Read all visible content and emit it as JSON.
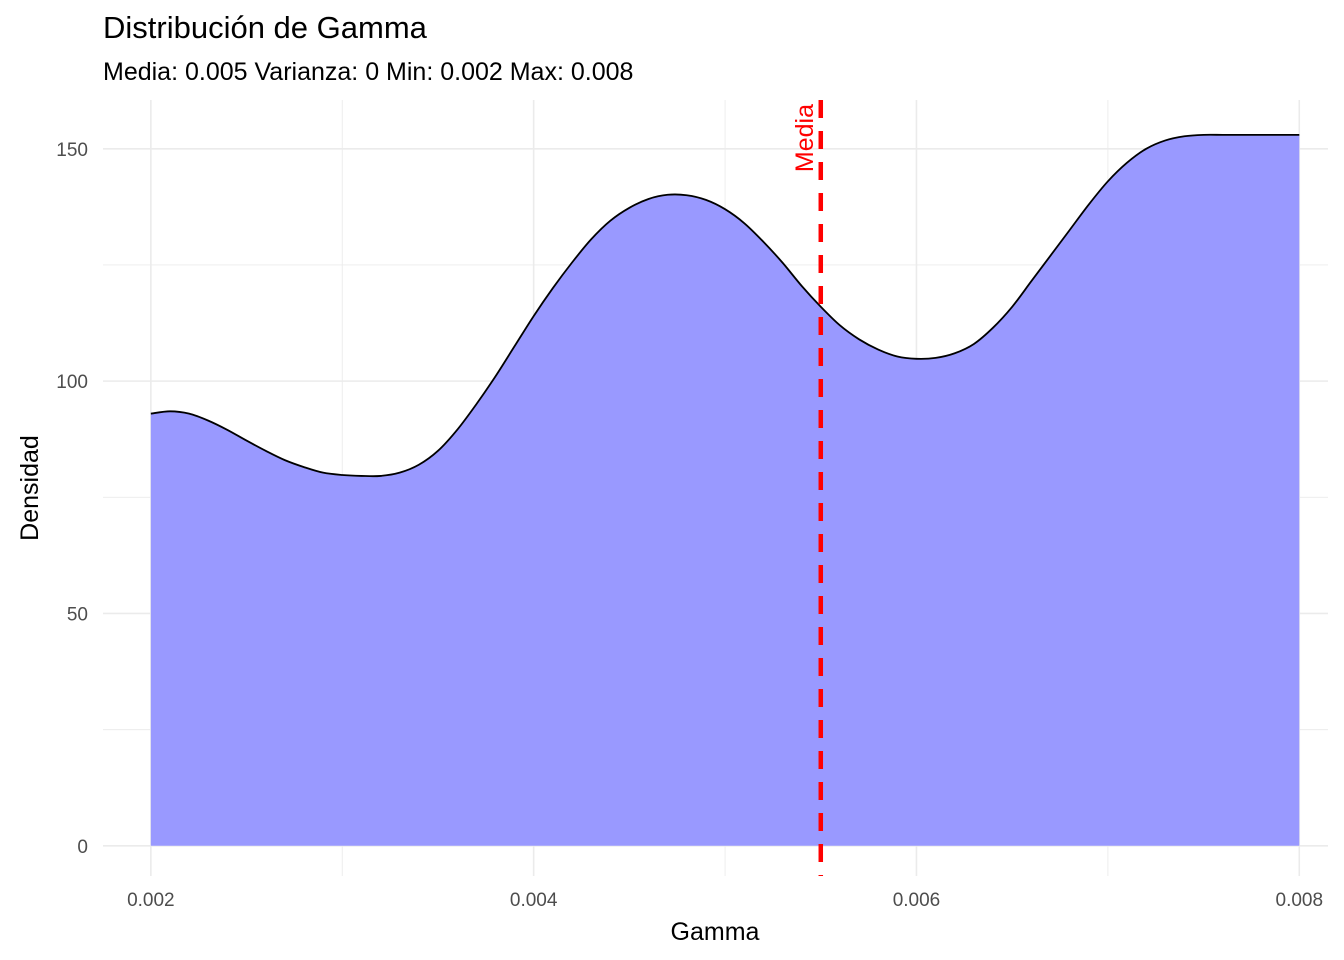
{
  "title": "Distribución de Gamma",
  "subtitle": "Media: 0.005 Varianza: 0 Min: 0.002 Max: 0.008",
  "colors": {
    "fill": "#9999ff",
    "outline": "#000000",
    "mean_line": "#ff0000",
    "grid": "#ebebeb",
    "tick_text": "#4d4d4d"
  },
  "chart_data": {
    "type": "area",
    "title": "Distribución de Gamma",
    "subtitle": "Media: 0.005 Varianza: 0 Min: 0.002 Max: 0.008",
    "xlabel": "Gamma",
    "ylabel": "Densidad",
    "xlim": [
      0.00175,
      0.00815
    ],
    "ylim": [
      -6.5,
      160.5
    ],
    "x_ticks": [
      0.002,
      0.004,
      0.006,
      0.008
    ],
    "x_tick_labels": [
      "0.002",
      "0.004",
      "0.006",
      "0.008"
    ],
    "y_ticks": [
      0,
      50,
      100,
      150
    ],
    "y_tick_labels": [
      "0",
      "50",
      "100",
      "150"
    ],
    "grid": true,
    "legend": "none",
    "series": [
      {
        "x": [
          0.002,
          0.0021,
          0.0022,
          0.0023,
          0.0024,
          0.0025,
          0.0026,
          0.0027,
          0.0028,
          0.0029,
          0.003,
          0.0031,
          0.0032,
          0.0033,
          0.0034,
          0.0035,
          0.0036,
          0.0037,
          0.0038,
          0.0039,
          0.004,
          0.0041,
          0.0042,
          0.0043,
          0.0044,
          0.0045,
          0.0046,
          0.0047,
          0.0048,
          0.0049,
          0.005,
          0.0051,
          0.0052,
          0.0053,
          0.0054,
          0.0055,
          0.0056,
          0.0057,
          0.0058,
          0.0059,
          0.006,
          0.0061,
          0.0062,
          0.0063,
          0.0064,
          0.0065,
          0.0066,
          0.0067,
          0.0068,
          0.0069,
          0.007,
          0.0071,
          0.0072,
          0.0073,
          0.0074,
          0.0075,
          0.0076,
          0.0077,
          0.0078,
          0.0079,
          0.008
        ],
        "y": [
          93,
          93.5,
          93,
          91.5,
          89.5,
          87.2,
          85,
          83,
          81.5,
          80.3,
          79.8,
          79.6,
          79.6,
          80.3,
          82,
          85,
          89.5,
          95,
          101,
          107.5,
          114,
          120,
          125.5,
          130.5,
          134.5,
          137.3,
          139.2,
          140.1,
          140,
          139,
          137,
          134,
          130,
          125.5,
          120.5,
          116,
          112,
          109,
          106.8,
          105.3,
          104.8,
          105,
          106,
          108,
          111.5,
          116,
          121.5,
          127,
          132.5,
          138,
          143,
          147,
          150,
          151.8,
          152.7,
          153,
          153,
          153,
          153,
          153,
          153
        ]
      }
    ],
    "mean_line": {
      "x": 0.0055,
      "label": "Media",
      "style": "dashed"
    }
  }
}
